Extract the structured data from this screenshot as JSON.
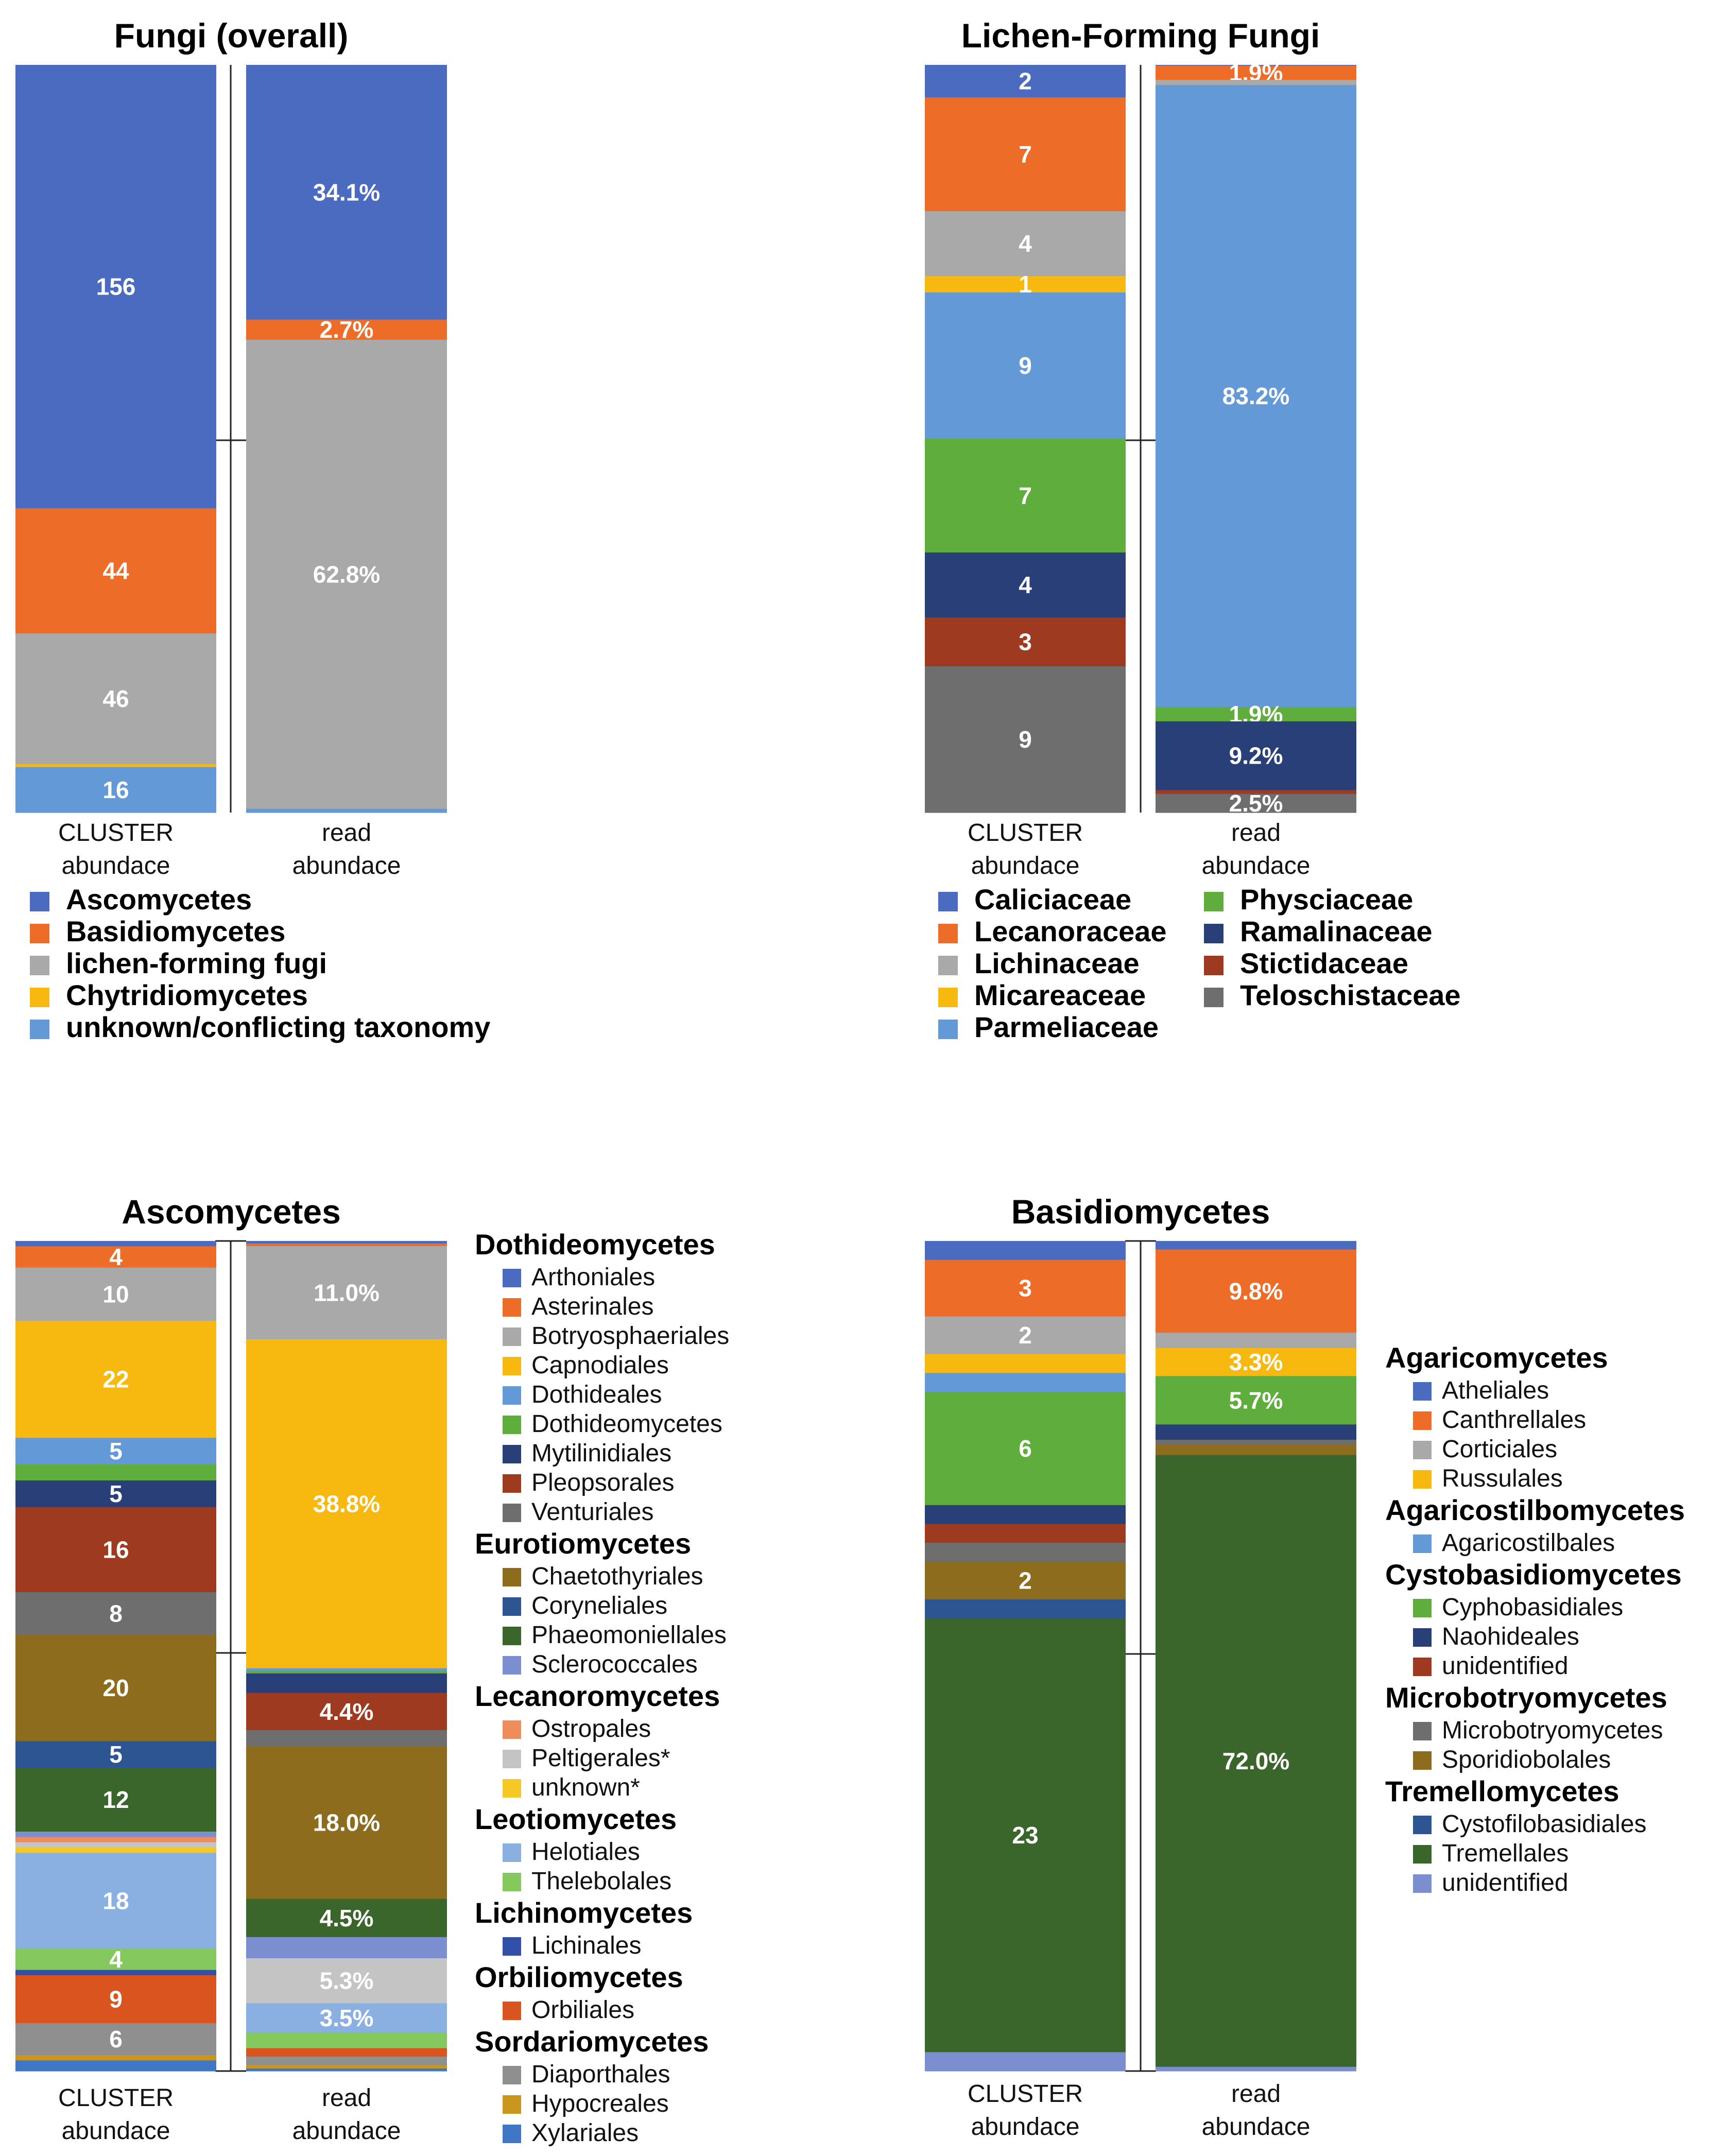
{
  "chart_data": [
    {
      "type": "bar",
      "stacked": true,
      "title": "Fungi (overall)",
      "categories": [
        "CLUSTER abundace",
        "read abundace"
      ],
      "legend_position": "bottom",
      "series": [
        {
          "name": "Ascomycetes",
          "color": "#4a6bc0",
          "values": [
            156,
            34.1
          ],
          "labels": [
            "156",
            "34.1%"
          ]
        },
        {
          "name": "Basidiomycetes",
          "color": "#ec6c28",
          "values": [
            44,
            2.7
          ],
          "labels": [
            "44",
            "2.7%"
          ]
        },
        {
          "name": "lichen-forming fugi",
          "color": "#a9a9a9",
          "values": [
            46,
            62.8
          ],
          "labels": [
            "46",
            "62.8%"
          ]
        },
        {
          "name": "Chytridiomycetes",
          "color": "#f7b90f",
          "values": [
            1,
            0
          ],
          "labels": [
            "",
            ""
          ]
        },
        {
          "name": "unknown/conflicting taxonomy",
          "color": "#6399d6",
          "values": [
            16,
            0.5
          ],
          "labels": [
            "16",
            ""
          ]
        }
      ]
    },
    {
      "type": "bar",
      "stacked": true,
      "title": "Lichen-Forming Fungi",
      "categories": [
        "CLUSTER abundace",
        "read abundace"
      ],
      "legend_position": "bottom",
      "series": [
        {
          "name": "Caliciaceae",
          "color": "#4a6bc0",
          "values": [
            2,
            0.1
          ],
          "labels": [
            "2",
            ""
          ]
        },
        {
          "name": "Lecanoraceae",
          "color": "#ec6c28",
          "values": [
            7,
            1.9
          ],
          "labels": [
            "7",
            "1.9%"
          ]
        },
        {
          "name": "Lichinaceae",
          "color": "#a9a9a9",
          "values": [
            4,
            0.7
          ],
          "labels": [
            "4",
            ""
          ]
        },
        {
          "name": "Micareaceae",
          "color": "#f7b90f",
          "values": [
            1,
            0
          ],
          "labels": [
            "1",
            ""
          ]
        },
        {
          "name": "Parmeliaceae",
          "color": "#6399d6",
          "values": [
            9,
            83.2
          ],
          "labels": [
            "9",
            "83.2%"
          ]
        },
        {
          "name": "Physciaceae",
          "color": "#5fad3c",
          "values": [
            7,
            1.9
          ],
          "labels": [
            "7",
            "1.9%"
          ]
        },
        {
          "name": "Ramalinaceae",
          "color": "#283f78",
          "values": [
            4,
            9.2
          ],
          "labels": [
            "4",
            "9.2%"
          ]
        },
        {
          "name": "Stictidaceae",
          "color": "#9d3a20",
          "values": [
            3,
            0.5
          ],
          "labels": [
            "3",
            ""
          ]
        },
        {
          "name": "Teloschistaceae",
          "color": "#6e6e6e",
          "values": [
            9,
            2.5
          ],
          "labels": [
            "9",
            "2.5%"
          ]
        }
      ]
    },
    {
      "type": "bar",
      "stacked": true,
      "title": "Ascomycetes",
      "categories": [
        "CLUSTER abundace",
        "read abundace"
      ],
      "legend_position": "right",
      "series": [
        {
          "name": "Arthoniales",
          "group": "Dothideomycetes",
          "color": "#4a6bc0",
          "values": [
            1,
            0.3
          ],
          "labels": [
            "",
            ""
          ]
        },
        {
          "name": "Asterinales",
          "group": "Dothideomycetes",
          "color": "#ec6c28",
          "values": [
            4,
            0.3
          ],
          "labels": [
            "4",
            ""
          ]
        },
        {
          "name": "Botryosphaeriales",
          "group": "Dothideomycetes",
          "color": "#a9a9a9",
          "values": [
            10,
            11.0
          ],
          "labels": [
            "10",
            "11.0%"
          ]
        },
        {
          "name": "Capnodiales",
          "group": "Dothideomycetes",
          "color": "#f7b90f",
          "values": [
            22,
            38.8
          ],
          "labels": [
            "22",
            "38.8%"
          ]
        },
        {
          "name": "Dothideales",
          "group": "Dothideomycetes",
          "color": "#6399d6",
          "values": [
            5,
            0.3
          ],
          "labels": [
            "5",
            ""
          ]
        },
        {
          "name": "Dothideomycetes",
          "group": "Dothideomycetes",
          "color": "#5fad3c",
          "values": [
            3,
            0.3
          ],
          "labels": [
            "",
            ""
          ]
        },
        {
          "name": "Mytilinidiales",
          "group": "Dothideomycetes",
          "color": "#283f78",
          "values": [
            5,
            2.3
          ],
          "labels": [
            "5",
            ""
          ]
        },
        {
          "name": "Pleopsorales",
          "group": "Dothideomycetes",
          "color": "#9d3a20",
          "values": [
            16,
            4.4
          ],
          "labels": [
            "16",
            "4.4%"
          ]
        },
        {
          "name": "Venturiales",
          "group": "Dothideomycetes",
          "color": "#6e6e6e",
          "values": [
            8,
            1.9
          ],
          "labels": [
            "8",
            ""
          ]
        },
        {
          "name": "Chaetothyriales",
          "group": "Eurotiomycetes",
          "color": "#8e6c1e",
          "values": [
            20,
            18.0
          ],
          "labels": [
            "20",
            "18.0%"
          ]
        },
        {
          "name": "Coryneliales",
          "group": "Eurotiomycetes",
          "color": "#2c5592",
          "values": [
            5,
            0
          ],
          "labels": [
            "5",
            ""
          ]
        },
        {
          "name": "Phaeomoniellales",
          "group": "Eurotiomycetes",
          "color": "#3a662b",
          "values": [
            12,
            4.5
          ],
          "labels": [
            "12",
            "4.5%"
          ]
        },
        {
          "name": "Sclerococcales",
          "group": "Eurotiomycetes",
          "color": "#7b8ed0",
          "values": [
            1,
            2.5
          ],
          "labels": [
            "",
            ""
          ]
        },
        {
          "name": "Ostropales",
          "group": "Lecanoromycetes",
          "color": "#f08c5a",
          "values": [
            1,
            0
          ],
          "labels": [
            "",
            ""
          ]
        },
        {
          "name": "Peltigerales*",
          "group": "Lecanoromycetes",
          "color": "#c4c4c4",
          "values": [
            1,
            5.3
          ],
          "labels": [
            "",
            "5.3%"
          ]
        },
        {
          "name": "unknown*",
          "group": "Lecanoromycetes",
          "color": "#f5c826",
          "values": [
            1,
            0
          ],
          "labels": [
            "",
            ""
          ]
        },
        {
          "name": "Helotiales",
          "group": "Leotiomycetes",
          "color": "#8ab0e2",
          "values": [
            18,
            3.5
          ],
          "labels": [
            "18",
            "3.5%"
          ]
        },
        {
          "name": "Thelebolales",
          "group": "Leotiomycetes",
          "color": "#85c95e",
          "values": [
            4,
            1.8
          ],
          "labels": [
            "4",
            ""
          ]
        },
        {
          "name": "Lichinales",
          "group": "Lichinomycetes",
          "color": "#3250a8",
          "values": [
            1,
            0
          ],
          "labels": [
            "",
            ""
          ]
        },
        {
          "name": "Orbiliales",
          "group": "Orbiliomycetes",
          "color": "#d9541e",
          "values": [
            9,
            1.0
          ],
          "labels": [
            "9",
            ""
          ]
        },
        {
          "name": "Diaporthales",
          "group": "Sordariomycetes",
          "color": "#8f8f8f",
          "values": [
            6,
            1.0
          ],
          "labels": [
            "6",
            ""
          ]
        },
        {
          "name": "Hypocreales",
          "group": "Sordariomycetes",
          "color": "#c9961e",
          "values": [
            1,
            0.4
          ],
          "labels": [
            "",
            ""
          ]
        },
        {
          "name": "Xylariales",
          "group": "Sordariomycetes",
          "color": "#3f76c6",
          "values": [
            2,
            0.3
          ],
          "labels": [
            "",
            ""
          ]
        }
      ]
    },
    {
      "type": "bar",
      "stacked": true,
      "title": "Basidiomycetes",
      "categories": [
        "CLUSTER abundace",
        "read abundace"
      ],
      "legend_position": "right",
      "series": [
        {
          "name": "Atheliales",
          "group": "Agaricomycetes",
          "color": "#4a6bc0",
          "values": [
            1,
            1.0
          ],
          "labels": [
            "",
            ""
          ]
        },
        {
          "name": "Canthrellales",
          "group": "Agaricomycetes",
          "color": "#ec6c28",
          "values": [
            3,
            9.8
          ],
          "labels": [
            "3",
            "9.8%"
          ]
        },
        {
          "name": "Corticiales",
          "group": "Agaricomycetes",
          "color": "#a9a9a9",
          "values": [
            2,
            1.8
          ],
          "labels": [
            "2",
            ""
          ]
        },
        {
          "name": "Russulales",
          "group": "Agaricomycetes",
          "color": "#f7b90f",
          "values": [
            1,
            3.3
          ],
          "labels": [
            "",
            "3.3%"
          ]
        },
        {
          "name": "Agaricostilbales",
          "group": "Agaricostilbomycetes",
          "color": "#6399d6",
          "values": [
            1,
            0
          ],
          "labels": [
            "",
            ""
          ]
        },
        {
          "name": "Cyphobasidiales",
          "group": "Cystobasidiomycetes",
          "color": "#5fad3c",
          "values": [
            6,
            5.7
          ],
          "labels": [
            "6",
            "5.7%"
          ]
        },
        {
          "name": "Naohideales",
          "group": "Cystobasidiomycetes",
          "color": "#283f78",
          "values": [
            1,
            1.8
          ],
          "labels": [
            "",
            ""
          ]
        },
        {
          "name": "unidentified",
          "group": "Cystobasidiomycetes",
          "color": "#9d3a20",
          "values": [
            1,
            0
          ],
          "labels": [
            "",
            ""
          ]
        },
        {
          "name": "Microbotryomycetes",
          "group": "Microbotryomycetes",
          "color": "#6e6e6e",
          "values": [
            1,
            0.6
          ],
          "labels": [
            "",
            ""
          ]
        },
        {
          "name": "Sporidiobolales",
          "group": "Microbotryomycetes",
          "color": "#8e6c1e",
          "values": [
            2,
            1.2
          ],
          "labels": [
            "2",
            ""
          ]
        },
        {
          "name": "Cystofilobasidiales",
          "group": "Tremellomycetes",
          "color": "#2c5592",
          "values": [
            1,
            0
          ],
          "labels": [
            "",
            ""
          ]
        },
        {
          "name": "Tremellales",
          "group": "Tremellomycetes",
          "color": "#3a662b",
          "values": [
            23,
            72.0
          ],
          "labels": [
            "23",
            "72.0%"
          ]
        },
        {
          "name": "unidentified",
          "group": "Tremellomycetes",
          "color": "#7b8ed0",
          "values": [
            1,
            0.5
          ],
          "labels": [
            "",
            ""
          ]
        }
      ]
    }
  ]
}
